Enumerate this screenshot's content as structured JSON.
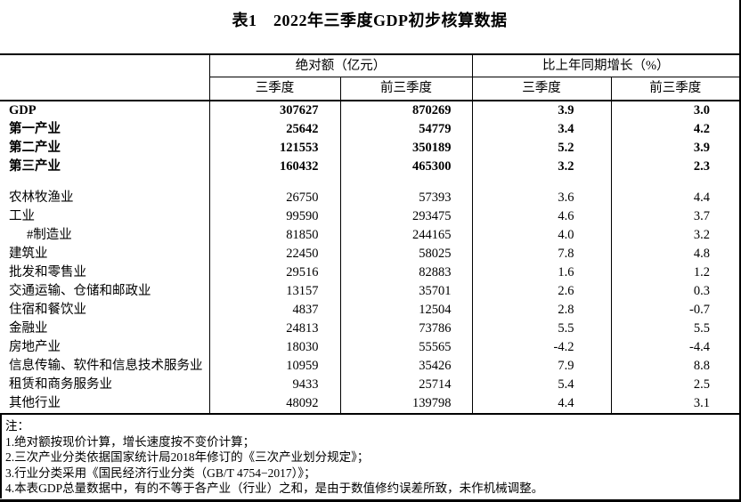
{
  "title": "表1　2022年三季度GDP初步核算数据",
  "table": {
    "col_groups": [
      {
        "label": "绝对额（亿元）"
      },
      {
        "label": "比上年同期增长（%）"
      }
    ],
    "sub_headers": [
      "三季度",
      "前三季度",
      "三季度",
      "前三季度"
    ],
    "rows": [
      {
        "label": "GDP",
        "bold": true,
        "values": [
          "307627",
          "870269",
          "3.9",
          "3.0"
        ]
      },
      {
        "label": "第一产业",
        "bold": true,
        "values": [
          "25642",
          "54779",
          "3.4",
          "4.2"
        ]
      },
      {
        "label": "第二产业",
        "bold": true,
        "values": [
          "121553",
          "350189",
          "5.2",
          "3.9"
        ]
      },
      {
        "label": "第三产业",
        "bold": true,
        "values": [
          "160432",
          "465300",
          "3.2",
          "2.3"
        ]
      },
      {
        "spacer": true
      },
      {
        "label": "农林牧渔业",
        "values": [
          "26750",
          "57393",
          "3.6",
          "4.4"
        ]
      },
      {
        "label": "工业",
        "values": [
          "99590",
          "293475",
          "4.6",
          "3.7"
        ]
      },
      {
        "label": "#制造业",
        "indent": true,
        "values": [
          "81850",
          "244165",
          "4.0",
          "3.2"
        ]
      },
      {
        "label": "建筑业",
        "values": [
          "22450",
          "58025",
          "7.8",
          "4.8"
        ]
      },
      {
        "label": "批发和零售业",
        "values": [
          "29516",
          "82883",
          "1.6",
          "1.2"
        ]
      },
      {
        "label": "交通运输、仓储和邮政业",
        "values": [
          "13157",
          "35701",
          "2.6",
          "0.3"
        ]
      },
      {
        "label": "住宿和餐饮业",
        "values": [
          "4837",
          "12504",
          "2.8",
          "-0.7"
        ]
      },
      {
        "label": "金融业",
        "values": [
          "24813",
          "73786",
          "5.5",
          "5.5"
        ]
      },
      {
        "label": "房地产业",
        "values": [
          "18030",
          "55565",
          "-4.2",
          "-4.4"
        ]
      },
      {
        "label": "信息传输、软件和信息技术服务业",
        "values": [
          "10959",
          "35426",
          "7.9",
          "8.8"
        ]
      },
      {
        "label": "租赁和商务服务业",
        "values": [
          "9433",
          "25714",
          "5.4",
          "2.5"
        ]
      },
      {
        "label": "其他行业",
        "values": [
          "48092",
          "139798",
          "4.4",
          "3.1"
        ]
      }
    ]
  },
  "notes": {
    "heading": "注：",
    "items": [
      "1.绝对额按现价计算，增长速度按不变价计算；",
      "2.三次产业分类依据国家统计局2018年修订的《三次产业划分规定》；",
      "3.行业分类采用《国民经济行业分类（GB/T 4754−2017）》；",
      "4.本表GDP总量数据中，有的不等于各产业（行业）之和，是由于数值修约误差所致，未作机械调整。"
    ]
  }
}
